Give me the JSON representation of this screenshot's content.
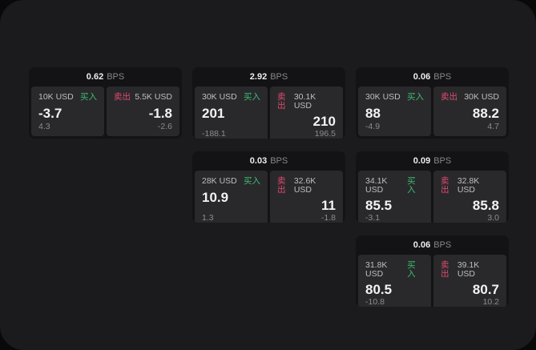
{
  "labels": {
    "bps_unit": "BPS",
    "buy": "买入",
    "sell": "卖出"
  },
  "colors": {
    "backdrop": "#09090a",
    "panel_bg": "#1b1b1d",
    "card_bg": "#131315",
    "tile_bg": "#29292c",
    "value_text": "#f3f3f4",
    "size_label_text": "#bebec1",
    "muted_text": "#8c8c90",
    "buy_green": "#3dbd70",
    "sell_red": "#e14a6d"
  },
  "cards": [
    {
      "bps": "0.62",
      "buy": {
        "size": "10K USD",
        "value": "-3.7",
        "delta": "4.3"
      },
      "sell": {
        "size": "5.5K USD",
        "value": "-1.8",
        "delta": "-2.6"
      }
    },
    {
      "bps": "2.92",
      "buy": {
        "size": "30K USD",
        "value": "201",
        "delta": "-188.1"
      },
      "sell": {
        "size": "30.1K USD",
        "value": "210",
        "delta": "196.5"
      }
    },
    {
      "bps": "0.06",
      "buy": {
        "size": "30K USD",
        "value": "88",
        "delta": "-4.9"
      },
      "sell": {
        "size": "30K USD",
        "value": "88.2",
        "delta": "4.7"
      }
    },
    {
      "bps": "0.03",
      "buy": {
        "size": "28K USD",
        "value": "10.9",
        "delta": "1.3"
      },
      "sell": {
        "size": "32.6K USD",
        "value": "11",
        "delta": "-1.8"
      }
    },
    {
      "bps": "0.09",
      "buy": {
        "size": "34.1K USD",
        "value": "85.5",
        "delta": "-3.1"
      },
      "sell": {
        "size": "32.8K USD",
        "value": "85.8",
        "delta": "3.0"
      }
    },
    {
      "bps": "0.06",
      "buy": {
        "size": "31.8K USD",
        "value": "80.5",
        "delta": "-10.8"
      },
      "sell": {
        "size": "39.1K USD",
        "value": "80.7",
        "delta": "10.2"
      }
    }
  ]
}
